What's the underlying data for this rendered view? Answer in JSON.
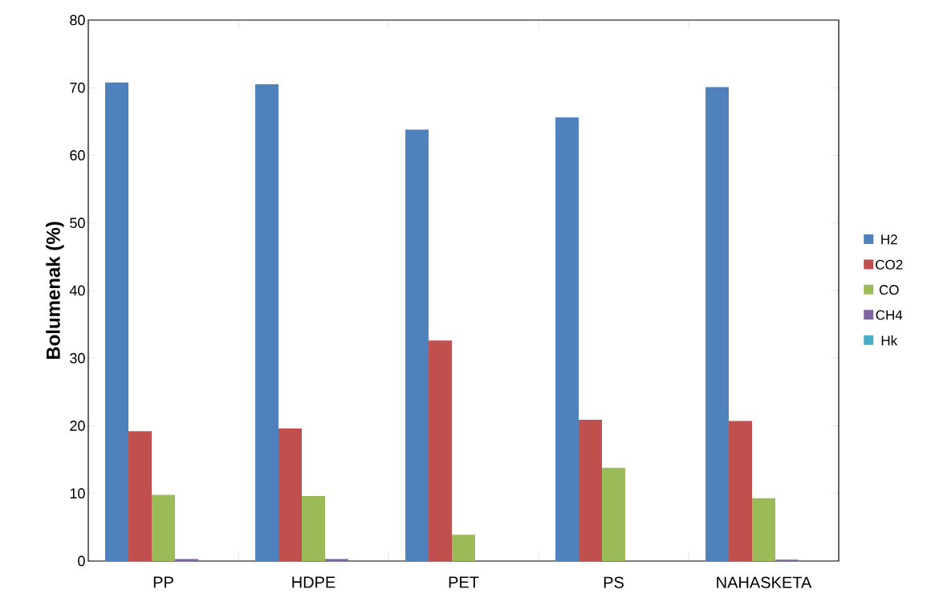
{
  "chart_data": {
    "type": "bar",
    "ylabel": "Bolumenak (%)",
    "categories": [
      "PP",
      "HDPE",
      "PET",
      "PS",
      "NAHASKETA"
    ],
    "series": [
      {
        "name": "H2",
        "color": "#4f81bd",
        "values": [
          70.8,
          70.5,
          63.8,
          65.6,
          70.1
        ]
      },
      {
        "name": "CO2",
        "color": "#c0504d",
        "values": [
          19.2,
          19.6,
          32.6,
          20.9,
          20.7
        ]
      },
      {
        "name": "CO",
        "color": "#9bbb59",
        "values": [
          9.8,
          9.6,
          3.9,
          13.8,
          9.3
        ]
      },
      {
        "name": "CH4",
        "color": "#8064a2",
        "values": [
          0.3,
          0.3,
          0,
          0,
          0.2
        ]
      },
      {
        "name": "Hk",
        "color": "#4bacc6",
        "values": [
          0,
          0,
          0,
          0,
          0
        ]
      }
    ],
    "ylim": [
      0,
      80
    ],
    "yticks": [
      0,
      10,
      20,
      30,
      40,
      50,
      60,
      70,
      80
    ],
    "grid": false,
    "legend": "right"
  }
}
